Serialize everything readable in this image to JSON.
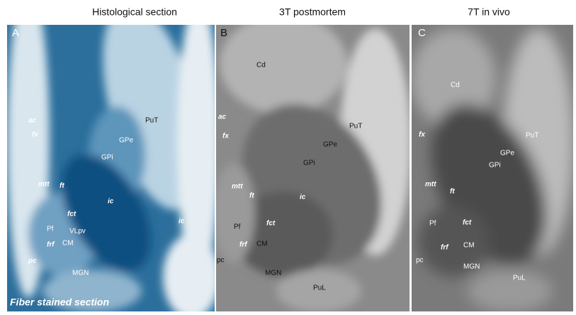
{
  "titles": [
    "Histological section",
    "3T postmortem",
    "7T in vivo"
  ],
  "panels": [
    {
      "letter": "A",
      "labels": [
        "ac",
        "fx",
        "mtt",
        "ft",
        "PuT",
        "GPe",
        "GPi",
        "ic",
        "fct",
        "Pf",
        "VLpv",
        "frf",
        "CM",
        "ic",
        "pc",
        "MGN"
      ],
      "caption": "Fiber stained section"
    },
    {
      "letter": "B",
      "labels": [
        "Cd",
        "ac",
        "fx",
        "PuT",
        "GPe",
        "GPi",
        "mtt",
        "ft",
        "ic",
        "fct",
        "Pf",
        "frf",
        "CM",
        "pc",
        "MGN",
        "PuL"
      ]
    },
    {
      "letter": "C",
      "labels": [
        "Cd",
        "fx",
        "PuT",
        "GPe",
        "GPi",
        "mtt",
        "ft",
        "fct",
        "Pf",
        "frf",
        "CM",
        "pc",
        "MGN",
        "PuL"
      ]
    }
  ]
}
